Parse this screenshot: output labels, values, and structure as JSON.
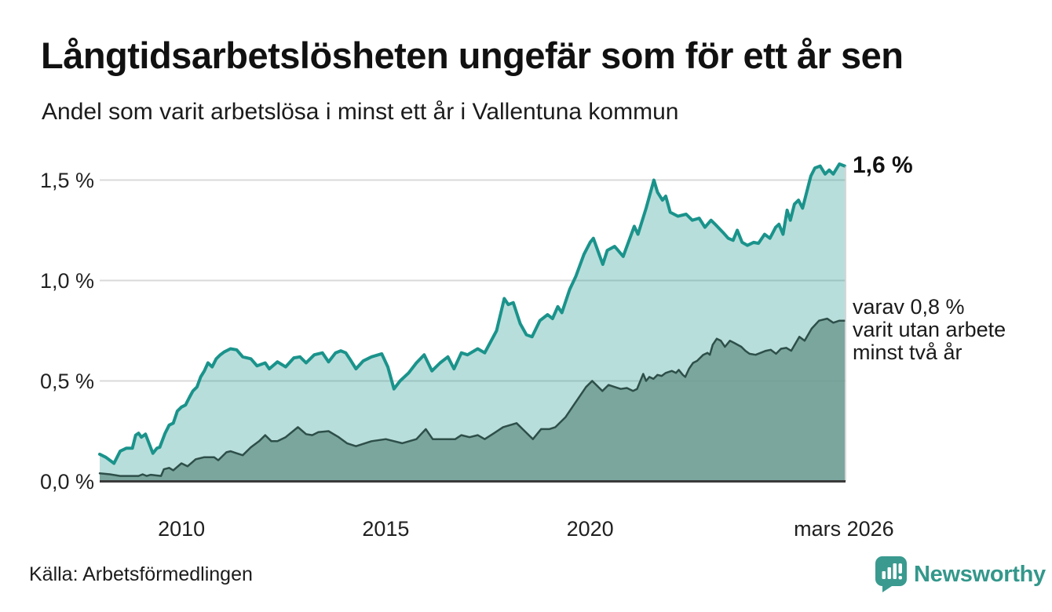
{
  "header": {
    "title": "Långtidsarbetslösheten ungefär som för ett år sen",
    "subtitle": "Andel som varit arbetslösa i minst ett år i Vallentuna kommun"
  },
  "annotations": {
    "end_value": "1,6 %",
    "secondary": [
      "varav 0,8 %",
      "varit utan arbete",
      "minst två år"
    ]
  },
  "source": {
    "label": "Källa: Arbetsförmedlingen"
  },
  "logo": {
    "text": "Newsworthy",
    "color": "#33978b",
    "icon": "newsworthy-speech-bubble-bar-chart"
  },
  "chart_data": {
    "type": "area",
    "title": "Långtidsarbetslösheten ungefär som för ett år sen",
    "subtitle": "Andel som varit arbetslösa i minst ett år i Vallentuna kommun",
    "xlabel": "",
    "ylabel": "",
    "x_domain": [
      2008.0,
      2026.25
    ],
    "ylim": [
      0,
      1.65
    ],
    "grid": "horizontal",
    "legend": "annotations-right",
    "colors": {
      "grid": "#d9d9d9",
      "axis": "#3a3a3a",
      "end_marker_line": "#c9c9c9"
    },
    "yticks": [
      {
        "value": 0.0,
        "label": "0,0 %"
      },
      {
        "value": 0.5,
        "label": "0,5 %"
      },
      {
        "value": 1.0,
        "label": "1,0 %"
      },
      {
        "value": 1.5,
        "label": "1,5 %"
      }
    ],
    "xticks": [
      {
        "value": 2010,
        "label": "2010"
      },
      {
        "value": 2015,
        "label": "2015"
      },
      {
        "value": 2020,
        "label": "2020"
      },
      {
        "value": 2026.21,
        "label": "mars 2026"
      }
    ],
    "series": [
      {
        "name": "Arbetslösa minst ett år",
        "end_label": "1,6 %",
        "end_value": 1.6,
        "line_color": "#1a938b",
        "line_width": 4,
        "fill_color": "rgba(26,147,139,0.31)",
        "points": [
          [
            2008.0,
            0.135
          ],
          [
            2008.15,
            0.12
          ],
          [
            2008.35,
            0.09
          ],
          [
            2008.5,
            0.15
          ],
          [
            2008.65,
            0.165
          ],
          [
            2008.8,
            0.165
          ],
          [
            2008.88,
            0.23
          ],
          [
            2008.95,
            0.24
          ],
          [
            2009.02,
            0.22
          ],
          [
            2009.12,
            0.235
          ],
          [
            2009.3,
            0.14
          ],
          [
            2009.4,
            0.165
          ],
          [
            2009.47,
            0.17
          ],
          [
            2009.6,
            0.24
          ],
          [
            2009.7,
            0.28
          ],
          [
            2009.8,
            0.29
          ],
          [
            2009.9,
            0.35
          ],
          [
            2010.0,
            0.37
          ],
          [
            2010.1,
            0.38
          ],
          [
            2010.2,
            0.42
          ],
          [
            2010.28,
            0.45
          ],
          [
            2010.38,
            0.47
          ],
          [
            2010.47,
            0.52
          ],
          [
            2010.56,
            0.55
          ],
          [
            2010.65,
            0.59
          ],
          [
            2010.75,
            0.57
          ],
          [
            2010.85,
            0.61
          ],
          [
            2010.95,
            0.63
          ],
          [
            2011.05,
            0.645
          ],
          [
            2011.2,
            0.66
          ],
          [
            2011.35,
            0.655
          ],
          [
            2011.5,
            0.62
          ],
          [
            2011.7,
            0.61
          ],
          [
            2011.85,
            0.575
          ],
          [
            2012.05,
            0.59
          ],
          [
            2012.15,
            0.56
          ],
          [
            2012.35,
            0.595
          ],
          [
            2012.55,
            0.57
          ],
          [
            2012.75,
            0.615
          ],
          [
            2012.9,
            0.62
          ],
          [
            2013.05,
            0.59
          ],
          [
            2013.25,
            0.63
          ],
          [
            2013.45,
            0.64
          ],
          [
            2013.6,
            0.595
          ],
          [
            2013.77,
            0.64
          ],
          [
            2013.9,
            0.65
          ],
          [
            2014.02,
            0.64
          ],
          [
            2014.15,
            0.6
          ],
          [
            2014.27,
            0.56
          ],
          [
            2014.45,
            0.6
          ],
          [
            2014.65,
            0.62
          ],
          [
            2014.9,
            0.635
          ],
          [
            2015.05,
            0.57
          ],
          [
            2015.2,
            0.46
          ],
          [
            2015.35,
            0.5
          ],
          [
            2015.56,
            0.54
          ],
          [
            2015.75,
            0.59
          ],
          [
            2015.94,
            0.63
          ],
          [
            2016.13,
            0.55
          ],
          [
            2016.33,
            0.59
          ],
          [
            2016.52,
            0.62
          ],
          [
            2016.67,
            0.56
          ],
          [
            2016.85,
            0.64
          ],
          [
            2017.0,
            0.63
          ],
          [
            2017.25,
            0.66
          ],
          [
            2017.42,
            0.64
          ],
          [
            2017.71,
            0.75
          ],
          [
            2017.9,
            0.91
          ],
          [
            2018.0,
            0.88
          ],
          [
            2018.12,
            0.89
          ],
          [
            2018.29,
            0.785
          ],
          [
            2018.44,
            0.73
          ],
          [
            2018.58,
            0.72
          ],
          [
            2018.77,
            0.8
          ],
          [
            2018.96,
            0.83
          ],
          [
            2019.08,
            0.81
          ],
          [
            2019.21,
            0.87
          ],
          [
            2019.31,
            0.84
          ],
          [
            2019.5,
            0.955
          ],
          [
            2019.65,
            1.02
          ],
          [
            2019.85,
            1.13
          ],
          [
            2020.0,
            1.19
          ],
          [
            2020.08,
            1.21
          ],
          [
            2020.31,
            1.08
          ],
          [
            2020.42,
            1.15
          ],
          [
            2020.6,
            1.17
          ],
          [
            2020.81,
            1.12
          ],
          [
            2021.08,
            1.27
          ],
          [
            2021.17,
            1.23
          ],
          [
            2021.37,
            1.36
          ],
          [
            2021.56,
            1.5
          ],
          [
            2021.65,
            1.44
          ],
          [
            2021.77,
            1.4
          ],
          [
            2021.85,
            1.42
          ],
          [
            2021.96,
            1.34
          ],
          [
            2022.15,
            1.32
          ],
          [
            2022.35,
            1.33
          ],
          [
            2022.5,
            1.3
          ],
          [
            2022.67,
            1.31
          ],
          [
            2022.81,
            1.265
          ],
          [
            2022.96,
            1.3
          ],
          [
            2023.06,
            1.28
          ],
          [
            2023.25,
            1.24
          ],
          [
            2023.38,
            1.21
          ],
          [
            2023.5,
            1.2
          ],
          [
            2023.6,
            1.25
          ],
          [
            2023.72,
            1.19
          ],
          [
            2023.85,
            1.175
          ],
          [
            2024.0,
            1.19
          ],
          [
            2024.12,
            1.185
          ],
          [
            2024.27,
            1.23
          ],
          [
            2024.4,
            1.21
          ],
          [
            2024.54,
            1.265
          ],
          [
            2024.62,
            1.28
          ],
          [
            2024.72,
            1.23
          ],
          [
            2024.82,
            1.35
          ],
          [
            2024.9,
            1.3
          ],
          [
            2025.0,
            1.38
          ],
          [
            2025.1,
            1.4
          ],
          [
            2025.2,
            1.36
          ],
          [
            2025.4,
            1.52
          ],
          [
            2025.5,
            1.56
          ],
          [
            2025.63,
            1.57
          ],
          [
            2025.75,
            1.53
          ],
          [
            2025.85,
            1.55
          ],
          [
            2025.95,
            1.53
          ],
          [
            2026.1,
            1.58
          ],
          [
            2026.23,
            1.57
          ]
        ]
      },
      {
        "name": "Varav utan arbete minst två år",
        "end_label": "varav 0,8 % varit utan arbete minst två år",
        "end_value": 0.8,
        "line_color": "#2e4f49",
        "line_width": 2.5,
        "fill_color": "rgba(111,156,147,0.85)",
        "points": [
          [
            2008.0,
            0.04
          ],
          [
            2008.25,
            0.035
          ],
          [
            2008.5,
            0.027
          ],
          [
            2008.95,
            0.027
          ],
          [
            2009.05,
            0.035
          ],
          [
            2009.15,
            0.027
          ],
          [
            2009.25,
            0.033
          ],
          [
            2009.5,
            0.027
          ],
          [
            2009.57,
            0.06
          ],
          [
            2009.7,
            0.067
          ],
          [
            2009.8,
            0.055
          ],
          [
            2010.0,
            0.09
          ],
          [
            2010.15,
            0.075
          ],
          [
            2010.35,
            0.11
          ],
          [
            2010.55,
            0.12
          ],
          [
            2010.8,
            0.12
          ],
          [
            2010.9,
            0.105
          ],
          [
            2011.1,
            0.145
          ],
          [
            2011.2,
            0.15
          ],
          [
            2011.35,
            0.14
          ],
          [
            2011.5,
            0.13
          ],
          [
            2011.7,
            0.17
          ],
          [
            2011.9,
            0.2
          ],
          [
            2012.05,
            0.23
          ],
          [
            2012.2,
            0.2
          ],
          [
            2012.35,
            0.2
          ],
          [
            2012.55,
            0.22
          ],
          [
            2012.85,
            0.27
          ],
          [
            2013.05,
            0.235
          ],
          [
            2013.2,
            0.23
          ],
          [
            2013.35,
            0.245
          ],
          [
            2013.6,
            0.25
          ],
          [
            2013.85,
            0.22
          ],
          [
            2014.05,
            0.19
          ],
          [
            2014.27,
            0.175
          ],
          [
            2014.65,
            0.2
          ],
          [
            2015.0,
            0.21
          ],
          [
            2015.4,
            0.19
          ],
          [
            2015.75,
            0.21
          ],
          [
            2015.98,
            0.26
          ],
          [
            2016.15,
            0.21
          ],
          [
            2016.35,
            0.21
          ],
          [
            2016.7,
            0.21
          ],
          [
            2016.85,
            0.23
          ],
          [
            2017.05,
            0.22
          ],
          [
            2017.25,
            0.23
          ],
          [
            2017.42,
            0.21
          ],
          [
            2017.65,
            0.24
          ],
          [
            2017.87,
            0.27
          ],
          [
            2018.2,
            0.29
          ],
          [
            2018.4,
            0.25
          ],
          [
            2018.6,
            0.21
          ],
          [
            2018.8,
            0.26
          ],
          [
            2019.0,
            0.26
          ],
          [
            2019.15,
            0.27
          ],
          [
            2019.4,
            0.32
          ],
          [
            2019.6,
            0.38
          ],
          [
            2019.9,
            0.47
          ],
          [
            2020.05,
            0.5
          ],
          [
            2020.3,
            0.45
          ],
          [
            2020.45,
            0.48
          ],
          [
            2020.6,
            0.47
          ],
          [
            2020.75,
            0.46
          ],
          [
            2020.9,
            0.465
          ],
          [
            2021.05,
            0.45
          ],
          [
            2021.15,
            0.46
          ],
          [
            2021.3,
            0.535
          ],
          [
            2021.37,
            0.5
          ],
          [
            2021.45,
            0.52
          ],
          [
            2021.55,
            0.51
          ],
          [
            2021.65,
            0.53
          ],
          [
            2021.75,
            0.525
          ],
          [
            2021.85,
            0.54
          ],
          [
            2022.0,
            0.55
          ],
          [
            2022.1,
            0.54
          ],
          [
            2022.17,
            0.555
          ],
          [
            2022.27,
            0.53
          ],
          [
            2022.33,
            0.52
          ],
          [
            2022.42,
            0.56
          ],
          [
            2022.52,
            0.59
          ],
          [
            2022.62,
            0.6
          ],
          [
            2022.67,
            0.61
          ],
          [
            2022.77,
            0.63
          ],
          [
            2022.87,
            0.64
          ],
          [
            2022.93,
            0.63
          ],
          [
            2023.0,
            0.68
          ],
          [
            2023.1,
            0.71
          ],
          [
            2023.2,
            0.7
          ],
          [
            2023.3,
            0.67
          ],
          [
            2023.42,
            0.7
          ],
          [
            2023.52,
            0.69
          ],
          [
            2023.7,
            0.67
          ],
          [
            2023.8,
            0.65
          ],
          [
            2023.9,
            0.635
          ],
          [
            2024.05,
            0.63
          ],
          [
            2024.3,
            0.65
          ],
          [
            2024.42,
            0.655
          ],
          [
            2024.55,
            0.635
          ],
          [
            2024.67,
            0.66
          ],
          [
            2024.8,
            0.665
          ],
          [
            2024.92,
            0.65
          ],
          [
            2025.12,
            0.72
          ],
          [
            2025.25,
            0.7
          ],
          [
            2025.42,
            0.76
          ],
          [
            2025.6,
            0.8
          ],
          [
            2025.8,
            0.81
          ],
          [
            2025.95,
            0.79
          ],
          [
            2026.1,
            0.8
          ],
          [
            2026.23,
            0.8
          ]
        ]
      }
    ]
  }
}
